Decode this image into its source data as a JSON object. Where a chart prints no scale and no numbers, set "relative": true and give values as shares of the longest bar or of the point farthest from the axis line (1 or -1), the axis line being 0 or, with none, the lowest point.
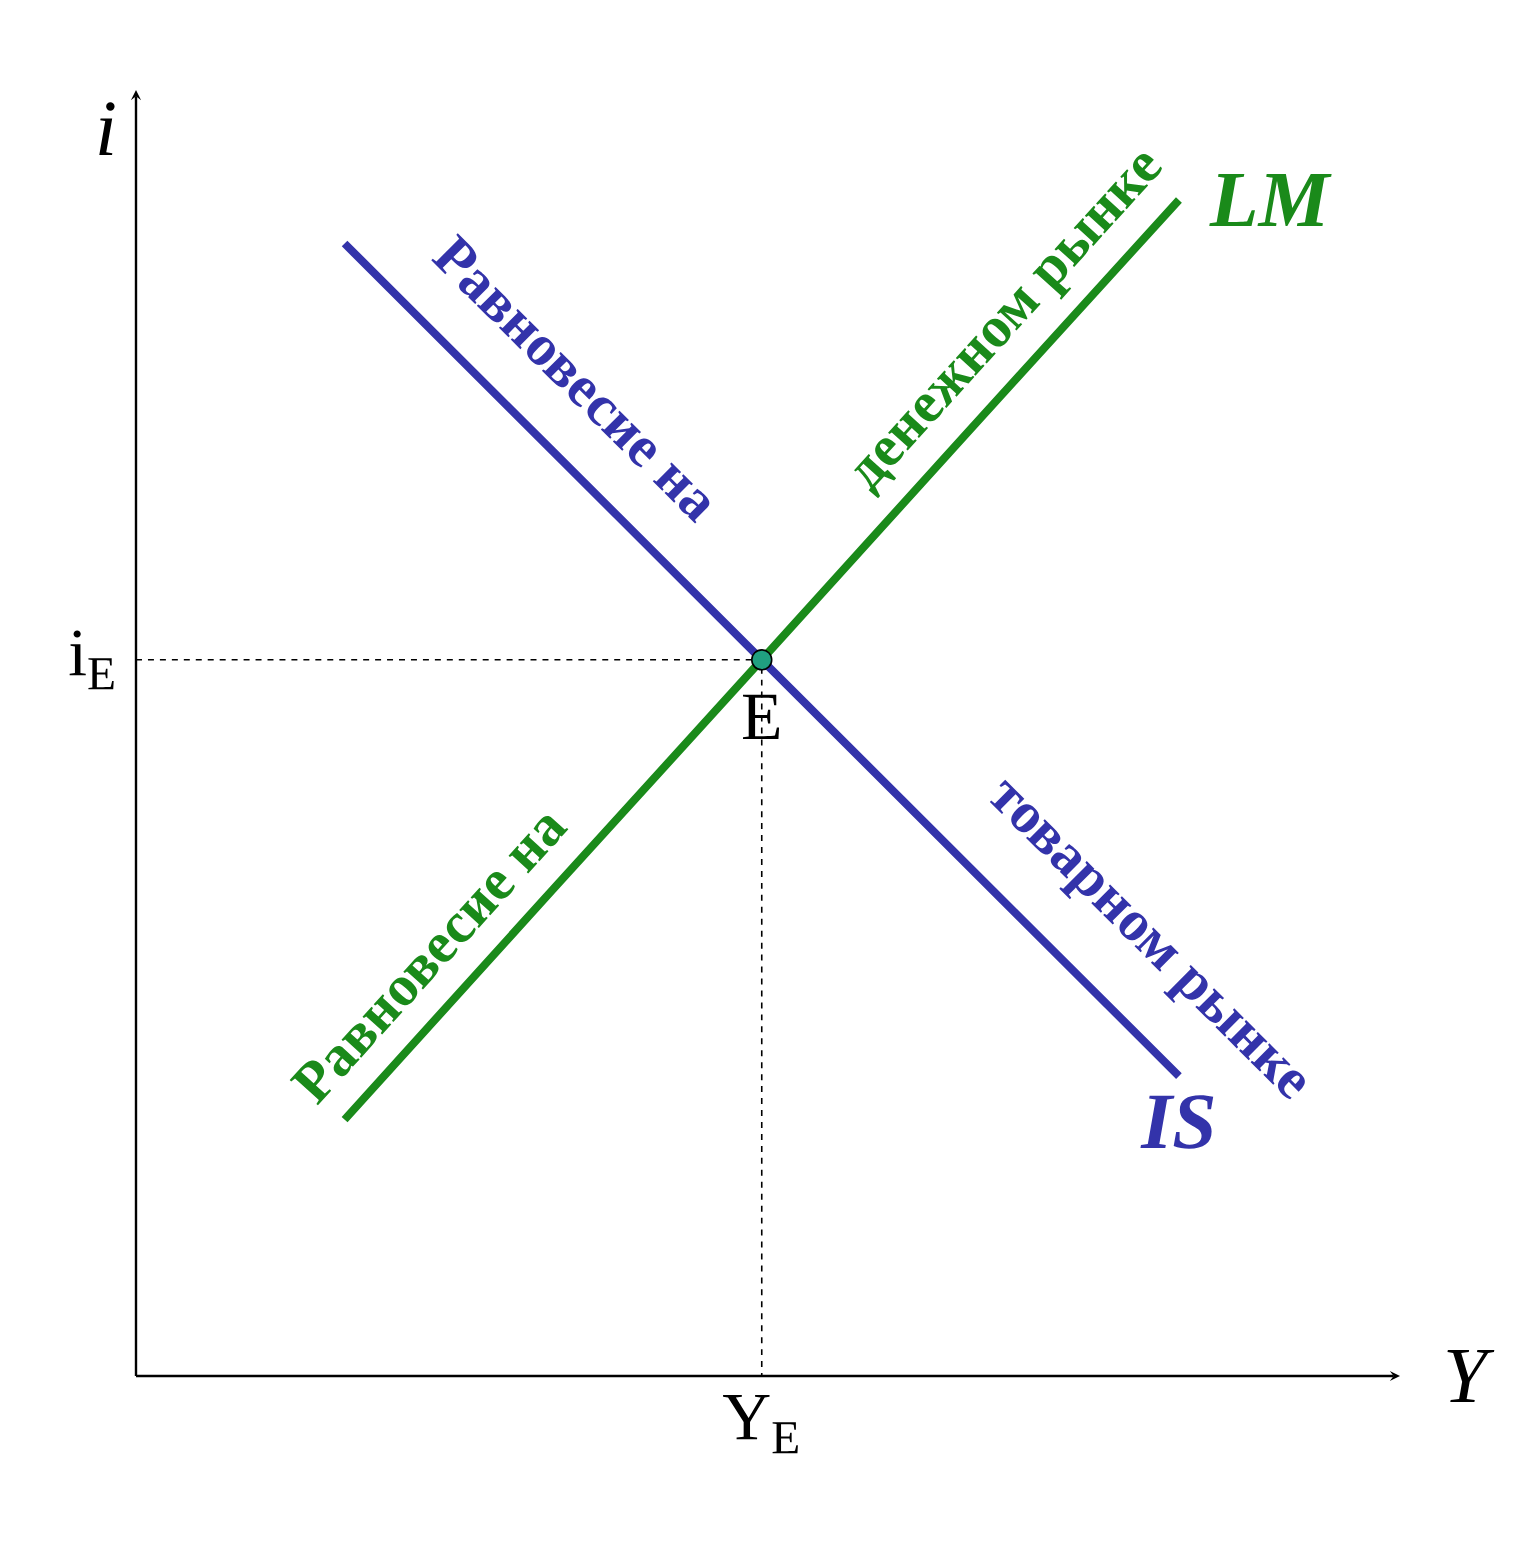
{
  "chart_data": {
    "type": "line",
    "relative": true,
    "xlabel": "Y",
    "ylabel": "i",
    "marker": "none",
    "line_style": "solid",
    "categories": [
      null,
      null,
      null,
      null,
      null,
      null,
      null
    ],
    "series": [
      {
        "name": "IS",
        "color": "#3333aa",
        "values": [
          null,
          0.963,
          0.786,
          0.609,
          0.432,
          0.255,
          null
        ]
      },
      {
        "name": "LM",
        "color": "#1a8a1a",
        "values": [
          null,
          0.218,
          0.414,
          0.609,
          0.805,
          1,
          null
        ]
      }
    ],
    "annotations": [
      "E",
      "i$_{E}$",
      "Y$_{E}$",
      "Равновесие на",
      "товарном рынке",
      "Равновесие на",
      "денежном рынке"
    ]
  }
}
